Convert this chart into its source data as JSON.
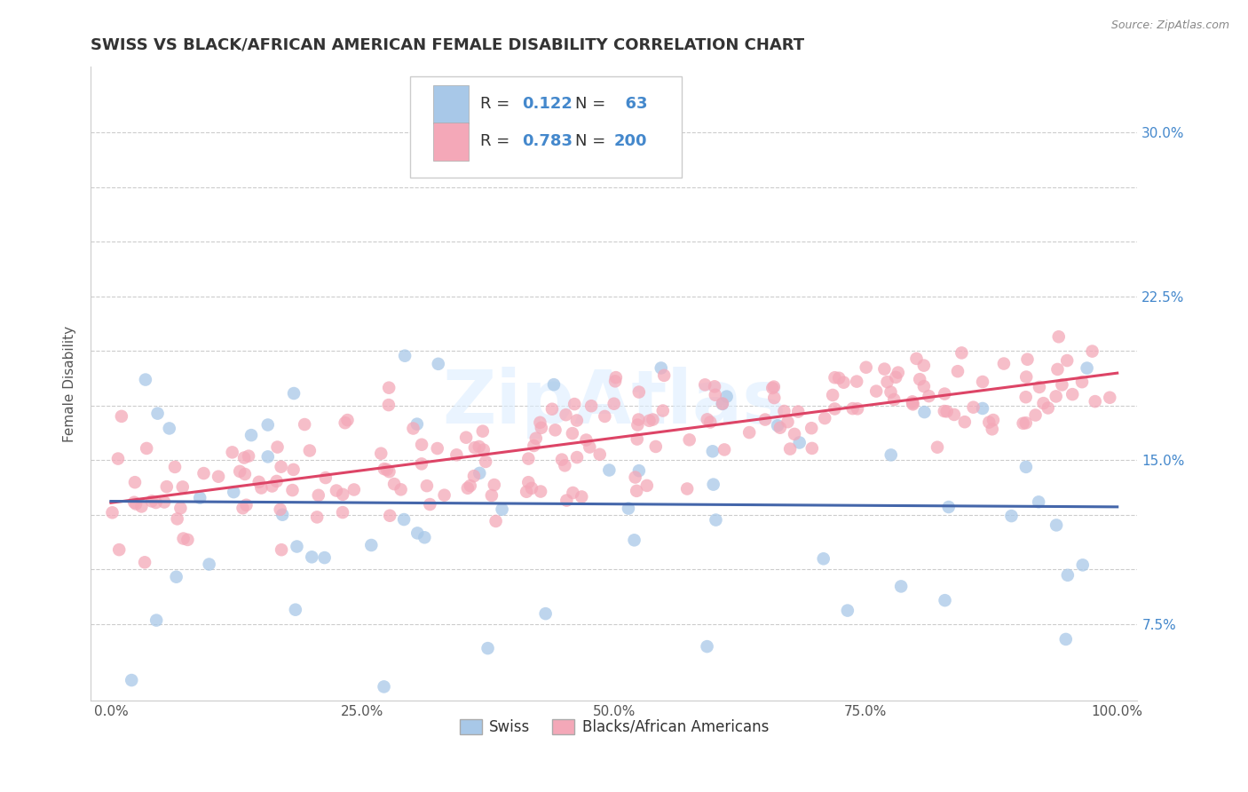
{
  "title": "SWISS VS BLACK/AFRICAN AMERICAN FEMALE DISABILITY CORRELATION CHART",
  "source": "Source: ZipAtlas.com",
  "ylabel": "Female Disability",
  "legend_labels": [
    "Swiss",
    "Blacks/African Americans"
  ],
  "swiss_color": "#a8c8e8",
  "black_color": "#f4a8b8",
  "swiss_line_color": "#4466aa",
  "black_line_color": "#dd4466",
  "swiss_R": 0.122,
  "swiss_N": 63,
  "black_R": 0.783,
  "black_N": 200,
  "xlim": [
    -0.02,
    1.02
  ],
  "ylim": [
    0.04,
    0.33
  ],
  "xticks": [
    0.0,
    0.25,
    0.5,
    0.75,
    1.0
  ],
  "xtick_labels": [
    "0.0%",
    "25.0%",
    "50.0%",
    "75.0%",
    "100.0%"
  ],
  "ytick_vals": [
    0.075,
    0.1,
    0.125,
    0.15,
    0.175,
    0.2,
    0.225,
    0.25,
    0.275,
    0.3
  ],
  "ytick_labels": [
    "7.5%",
    "",
    "",
    "15.0%",
    "",
    "",
    "22.5%",
    "",
    "",
    "30.0%"
  ],
  "watermark": "ZipAtlas",
  "background_color": "#ffffff",
  "grid_color": "#cccccc",
  "title_fontsize": 13,
  "axis_label_fontsize": 11,
  "tick_fontsize": 11,
  "legend_fontsize": 13
}
